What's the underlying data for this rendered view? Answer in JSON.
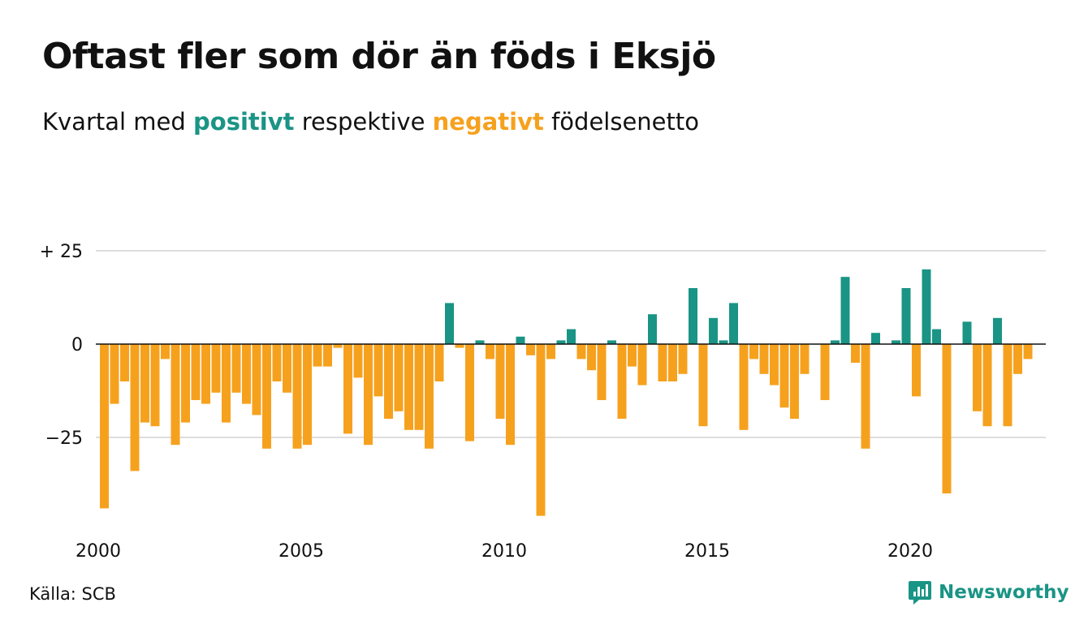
{
  "title": "Oftast fler som dör än föds i Eksjö",
  "subtitle": {
    "prefix": "Kvartal med",
    "positive": "positivt",
    "middle": "respektive",
    "negative": "negativt",
    "suffix": "födelsenetto"
  },
  "source": "Källa: SCB",
  "brand": "Newsworthy",
  "colors": {
    "positive": "#1a9485",
    "negative": "#f6a11e",
    "grid": "#dddddd",
    "zero": "#111111"
  },
  "chart_data": {
    "type": "bar",
    "y_ticks": [
      {
        "value": 25,
        "label": "+ 25"
      },
      {
        "value": 0,
        "label": "0"
      },
      {
        "value": -25,
        "label": "−25"
      }
    ],
    "x_ticks": [
      "2000",
      "2005",
      "2010",
      "2015",
      "2020"
    ],
    "ylim": [
      -46,
      25
    ],
    "grid": true,
    "start": "2000 Q1",
    "values": [
      -44,
      -16,
      -10,
      -34,
      -21,
      -22,
      -4,
      -27,
      -21,
      -15,
      -16,
      -13,
      -21,
      -13,
      -16,
      -19,
      -28,
      -10,
      -13,
      -28,
      -27,
      -6,
      -6,
      -1,
      -24,
      -9,
      -27,
      -14,
      -20,
      -18,
      -23,
      -23,
      -28,
      -10,
      11,
      -1,
      -26,
      1,
      -4,
      -20,
      -27,
      2,
      -3,
      -46,
      -4,
      1,
      4,
      -4,
      -7,
      -15,
      1,
      -20,
      -6,
      -11,
      8,
      -10,
      -10,
      -8,
      15,
      -22,
      7,
      1,
      11,
      -23,
      -4,
      -8,
      -11,
      -17,
      -20,
      -8,
      0,
      -15,
      1,
      18,
      -5,
      -28,
      3,
      0,
      1,
      15,
      -14,
      20,
      4,
      -40,
      0,
      6,
      -18,
      -22,
      7,
      -22,
      -8,
      -4
    ]
  }
}
